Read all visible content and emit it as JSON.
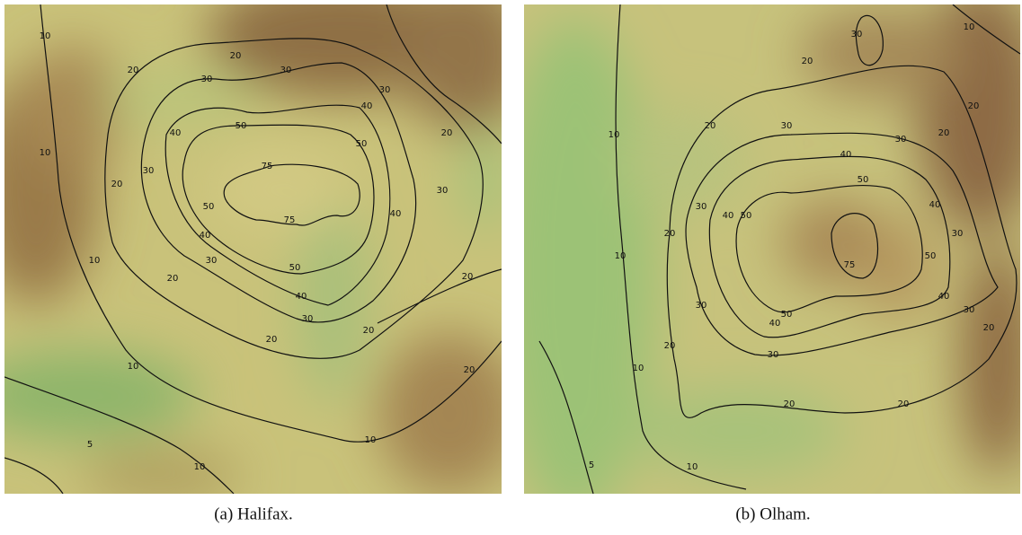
{
  "panels": [
    {
      "caption": "(a) Halifax.",
      "contour_labels": [
        "10",
        "20",
        "20",
        "30",
        "30",
        "30",
        "40",
        "40",
        "50",
        "50",
        "20",
        "10",
        "30",
        "20",
        "75",
        "30",
        "40",
        "50",
        "75",
        "40",
        "10",
        "30",
        "20",
        "50",
        "40",
        "20",
        "30",
        "20",
        "20",
        "10",
        "20",
        "10",
        "5",
        "10"
      ]
    },
    {
      "caption": "(b) Olham.",
      "contour_labels": [
        "10",
        "30",
        "20",
        "20",
        "20",
        "30",
        "10",
        "20",
        "30",
        "40",
        "30",
        "40",
        "50",
        "50",
        "40",
        "20",
        "10",
        "30",
        "50",
        "75",
        "30",
        "50",
        "40",
        "30",
        "40",
        "20",
        "30",
        "20",
        "10",
        "20",
        "20",
        "5",
        "10"
      ]
    }
  ]
}
